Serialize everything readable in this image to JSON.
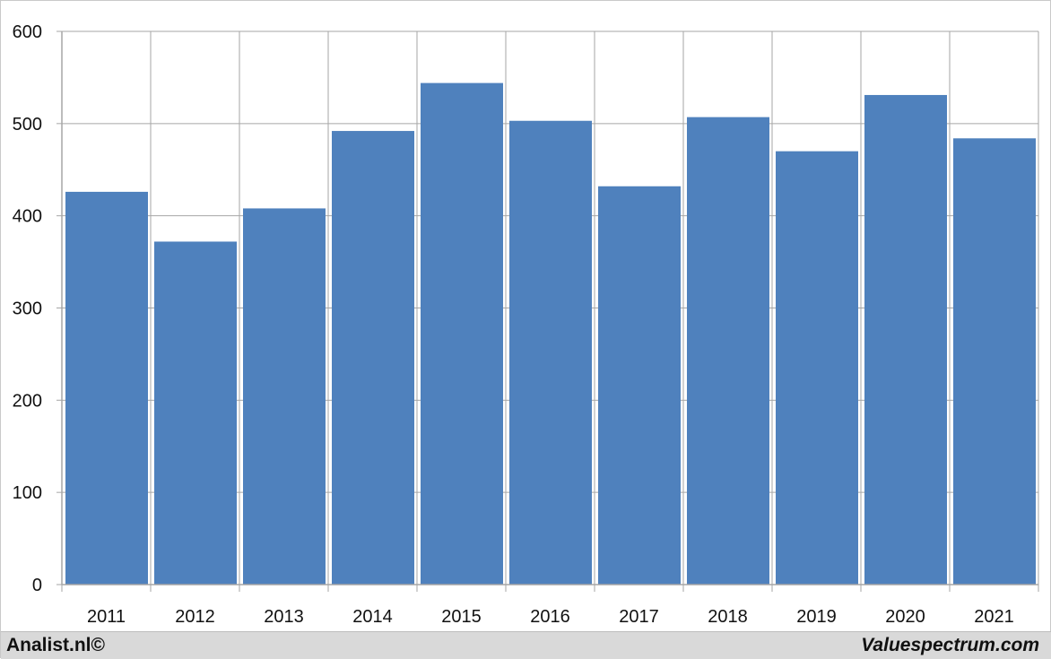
{
  "chart_data": {
    "type": "bar",
    "categories": [
      "2011",
      "2012",
      "2013",
      "2014",
      "2015",
      "2016",
      "2017",
      "2018",
      "2019",
      "2020",
      "2021"
    ],
    "values": [
      426,
      372,
      408,
      492,
      544,
      503,
      432,
      507,
      470,
      531,
      484
    ],
    "ylim": [
      0,
      600
    ],
    "yticks": [
      "0",
      "100",
      "200",
      "300",
      "400",
      "500",
      "600"
    ],
    "grid": true,
    "bar_color": "#4f81bd",
    "title": "",
    "xlabel": "",
    "ylabel": ""
  },
  "footer": {
    "left_credit": "Analist.nl©",
    "right_credit": "Valuespectrum.com"
  },
  "colors": {
    "footer_bg": "#d9d9d9",
    "grid": "#a6a6a6"
  }
}
